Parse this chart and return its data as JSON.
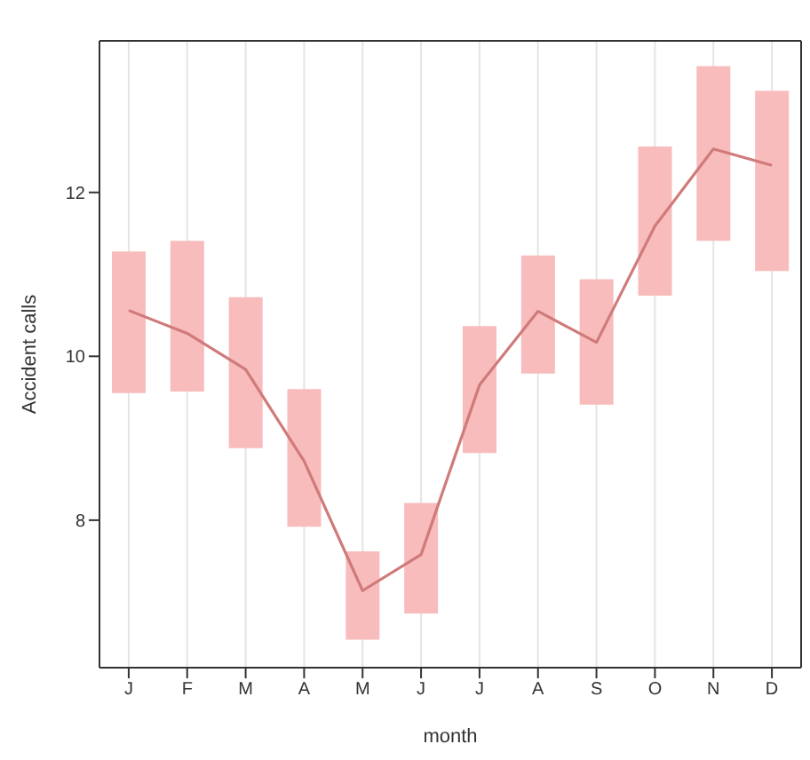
{
  "chart_data": {
    "type": "line",
    "xlabel": "month",
    "ylabel": "Accident calls",
    "categories": [
      "J",
      "F",
      "M",
      "A",
      "M",
      "J",
      "J",
      "A",
      "S",
      "O",
      "N",
      "D"
    ],
    "series": [
      {
        "type": "bar",
        "color": "#f8bcbc",
        "base": [
          9.55,
          9.57,
          8.88,
          7.92,
          6.54,
          6.86,
          8.82,
          9.79,
          9.41,
          10.74,
          11.41,
          11.04
        ],
        "values": [
          1.73,
          1.84,
          1.84,
          1.68,
          1.08,
          1.35,
          1.55,
          1.44,
          1.53,
          1.82,
          2.13,
          2.2
        ]
      },
      {
        "color": "#d07a7a",
        "values": [
          10.56,
          10.28,
          9.84,
          8.72,
          7.14,
          7.58,
          9.65,
          10.55,
          10.17,
          11.59,
          12.53,
          12.33
        ]
      }
    ],
    "ylim": [
      6.2,
      13.85
    ],
    "yticks": [
      8,
      10,
      12
    ],
    "grid": true,
    "marker": "none",
    "line_style": "solid"
  }
}
